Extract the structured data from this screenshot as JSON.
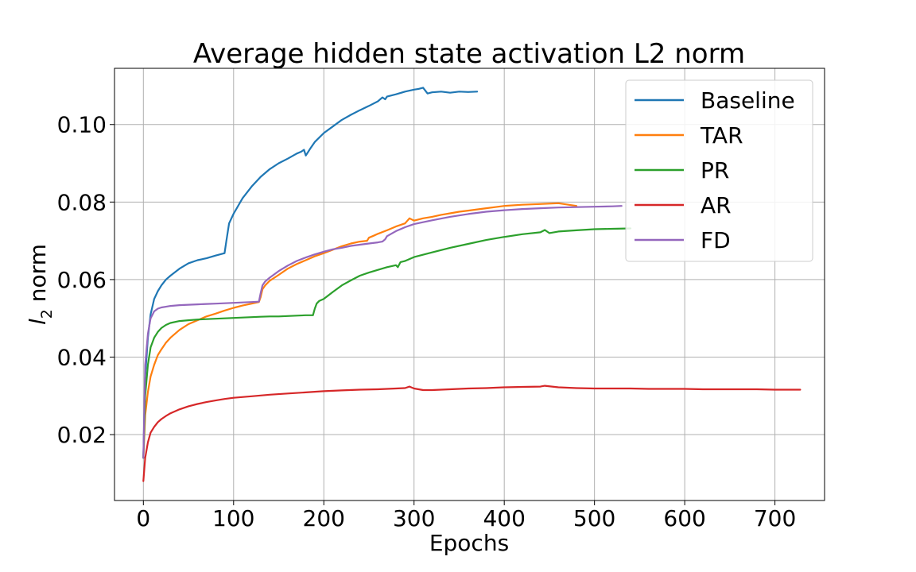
{
  "chart_data": {
    "type": "line",
    "title": "Average hidden state activation L2 norm",
    "xlabel": "Epochs",
    "ylabel_base": "l",
    "ylabel_sub": "2",
    "ylabel_rest": " norm",
    "xlim": [
      -32,
      755
    ],
    "ylim": [
      0.003,
      0.1145
    ],
    "xticks": [
      0,
      100,
      200,
      300,
      400,
      500,
      600,
      700
    ],
    "xtick_labels": [
      "0",
      "100",
      "200",
      "300",
      "400",
      "500",
      "600",
      "700"
    ],
    "yticks": [
      0.02,
      0.04,
      0.06,
      0.08,
      0.1
    ],
    "ytick_labels": [
      "0.02",
      "0.04",
      "0.06",
      "0.08",
      "0.10"
    ],
    "grid": true,
    "legend_position": "top-right",
    "series": [
      {
        "name": "Baseline",
        "color": "#1f77b4",
        "x": [
          0,
          2,
          5,
          8,
          12,
          16,
          20,
          25,
          30,
          40,
          50,
          60,
          70,
          80,
          90,
          92,
          95,
          100,
          110,
          120,
          130,
          140,
          150,
          160,
          170,
          175,
          178,
          180,
          185,
          190,
          200,
          210,
          220,
          230,
          240,
          250,
          260,
          265,
          268,
          270,
          280,
          290,
          300,
          305,
          310,
          315,
          320,
          330,
          340,
          350,
          360,
          370
        ],
        "y": [
          0.014,
          0.035,
          0.045,
          0.051,
          0.055,
          0.057,
          0.0585,
          0.06,
          0.061,
          0.0628,
          0.0642,
          0.065,
          0.0655,
          0.0662,
          0.0668,
          0.07,
          0.0745,
          0.077,
          0.081,
          0.084,
          0.0865,
          0.0885,
          0.09,
          0.0912,
          0.0925,
          0.093,
          0.0935,
          0.092,
          0.0938,
          0.0955,
          0.0978,
          0.0995,
          0.1012,
          0.1025,
          0.1037,
          0.1048,
          0.106,
          0.107,
          0.1065,
          0.1072,
          0.1078,
          0.1085,
          0.109,
          0.1092,
          0.1095,
          0.108,
          0.1083,
          0.1085,
          0.1082,
          0.1085,
          0.1084,
          0.1085
        ]
      },
      {
        "name": "TAR",
        "color": "#ff7f0e",
        "x": [
          0,
          2,
          5,
          8,
          12,
          16,
          20,
          25,
          30,
          40,
          50,
          60,
          70,
          80,
          90,
          100,
          110,
          120,
          128,
          130,
          132,
          135,
          140,
          150,
          160,
          170,
          180,
          190,
          200,
          210,
          220,
          230,
          240,
          248,
          250,
          255,
          260,
          270,
          280,
          290,
          295,
          300,
          310,
          320,
          330,
          340,
          350,
          360,
          370,
          380,
          390,
          400,
          420,
          440,
          460,
          480
        ],
        "y": [
          0.014,
          0.025,
          0.031,
          0.035,
          0.038,
          0.0405,
          0.042,
          0.0437,
          0.045,
          0.047,
          0.0485,
          0.0495,
          0.0505,
          0.0512,
          0.052,
          0.0527,
          0.0533,
          0.0538,
          0.0542,
          0.0555,
          0.0575,
          0.0585,
          0.0597,
          0.0612,
          0.0628,
          0.064,
          0.065,
          0.066,
          0.0668,
          0.0677,
          0.0686,
          0.0693,
          0.0698,
          0.07,
          0.0708,
          0.0713,
          0.0718,
          0.0727,
          0.0737,
          0.0745,
          0.0758,
          0.0752,
          0.0758,
          0.0762,
          0.0767,
          0.0771,
          0.0775,
          0.0778,
          0.0781,
          0.0784,
          0.0787,
          0.079,
          0.0793,
          0.0795,
          0.0797,
          0.079
        ]
      },
      {
        "name": "PR",
        "color": "#2ca02c",
        "x": [
          0,
          2,
          5,
          8,
          12,
          16,
          20,
          25,
          30,
          40,
          50,
          60,
          70,
          80,
          90,
          100,
          110,
          120,
          130,
          140,
          150,
          160,
          170,
          180,
          188,
          190,
          192,
          195,
          200,
          210,
          220,
          230,
          240,
          250,
          260,
          270,
          280,
          282,
          285,
          290,
          300,
          320,
          340,
          360,
          380,
          400,
          420,
          440,
          445,
          450,
          460,
          480,
          500,
          520,
          540
        ],
        "y": [
          0.014,
          0.03,
          0.038,
          0.0425,
          0.045,
          0.0465,
          0.0475,
          0.0483,
          0.0488,
          0.0493,
          0.0495,
          0.0497,
          0.0498,
          0.0499,
          0.05,
          0.0501,
          0.0502,
          0.0503,
          0.0504,
          0.0505,
          0.0505,
          0.0506,
          0.0507,
          0.0508,
          0.0508,
          0.0525,
          0.0538,
          0.0545,
          0.055,
          0.0568,
          0.0585,
          0.0598,
          0.061,
          0.0618,
          0.0625,
          0.0632,
          0.0637,
          0.0632,
          0.0645,
          0.0648,
          0.0658,
          0.067,
          0.0682,
          0.0692,
          0.0702,
          0.071,
          0.0717,
          0.0722,
          0.0728,
          0.072,
          0.0724,
          0.0727,
          0.073,
          0.0731,
          0.0732
        ]
      },
      {
        "name": "AR",
        "color": "#d62728",
        "x": [
          0,
          2,
          5,
          8,
          12,
          16,
          20,
          25,
          30,
          40,
          50,
          60,
          70,
          80,
          90,
          100,
          120,
          140,
          160,
          180,
          200,
          220,
          240,
          260,
          280,
          290,
          295,
          300,
          310,
          320,
          340,
          360,
          380,
          400,
          420,
          440,
          445,
          460,
          480,
          500,
          520,
          540,
          560,
          580,
          600,
          620,
          640,
          660,
          680,
          700,
          720,
          728
        ],
        "y": [
          0.008,
          0.014,
          0.018,
          0.0205,
          0.022,
          0.0232,
          0.024,
          0.0248,
          0.0255,
          0.0265,
          0.0273,
          0.0279,
          0.0284,
          0.0288,
          0.0292,
          0.0295,
          0.0299,
          0.0303,
          0.0306,
          0.0309,
          0.0312,
          0.0314,
          0.0316,
          0.0317,
          0.0319,
          0.032,
          0.0324,
          0.0319,
          0.0315,
          0.0315,
          0.0317,
          0.0319,
          0.032,
          0.0322,
          0.0323,
          0.0324,
          0.0326,
          0.0322,
          0.032,
          0.0319,
          0.0319,
          0.0319,
          0.0318,
          0.0318,
          0.0318,
          0.0317,
          0.0317,
          0.0317,
          0.0317,
          0.0316,
          0.0316,
          0.0316
        ]
      },
      {
        "name": "FD",
        "color": "#9467bd",
        "x": [
          0,
          2,
          5,
          8,
          12,
          16,
          20,
          25,
          30,
          40,
          50,
          60,
          70,
          80,
          90,
          100,
          110,
          120,
          128,
          130,
          132,
          135,
          140,
          150,
          160,
          170,
          180,
          190,
          200,
          210,
          220,
          230,
          240,
          250,
          260,
          265,
          268,
          270,
          280,
          290,
          300,
          320,
          340,
          360,
          380,
          400,
          420,
          440,
          460,
          480,
          500,
          520,
          530
        ],
        "y": [
          0.014,
          0.038,
          0.046,
          0.05,
          0.0518,
          0.0525,
          0.0528,
          0.053,
          0.0532,
          0.0534,
          0.0535,
          0.0536,
          0.0537,
          0.0538,
          0.0539,
          0.054,
          0.0541,
          0.0542,
          0.0543,
          0.0565,
          0.0585,
          0.0595,
          0.0605,
          0.0622,
          0.0636,
          0.0648,
          0.0657,
          0.0665,
          0.0672,
          0.0678,
          0.0682,
          0.0687,
          0.069,
          0.0693,
          0.0696,
          0.0698,
          0.0704,
          0.0712,
          0.0725,
          0.0735,
          0.0743,
          0.0753,
          0.0762,
          0.0769,
          0.0775,
          0.0779,
          0.0782,
          0.0784,
          0.0786,
          0.0787,
          0.0788,
          0.0789,
          0.079
        ]
      }
    ]
  }
}
